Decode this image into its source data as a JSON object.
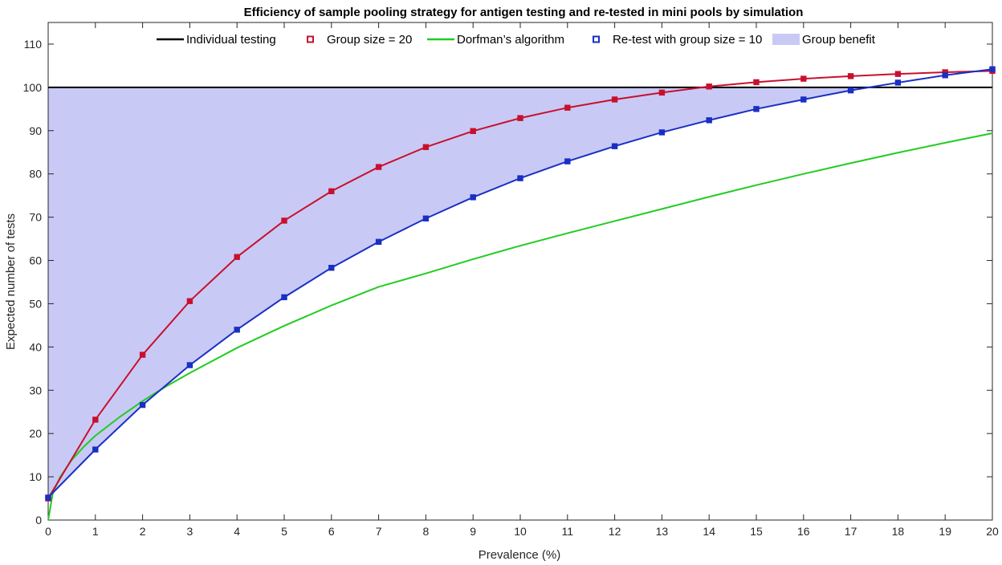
{
  "chart_data": {
    "type": "line",
    "title": "Efficiency of sample pooling strategy for antigen testing and re-tested in mini pools by simulation",
    "xlabel": "Prevalence (%)",
    "ylabel": "Expected number of tests",
    "xlim": [
      0,
      20
    ],
    "ylim": [
      0,
      115
    ],
    "xticks": [
      0,
      1,
      2,
      3,
      4,
      5,
      6,
      7,
      8,
      9,
      10,
      11,
      12,
      13,
      14,
      15,
      16,
      17,
      18,
      19,
      20
    ],
    "yticks": [
      0,
      10,
      20,
      30,
      40,
      50,
      60,
      70,
      80,
      90,
      100,
      110
    ],
    "grid": false,
    "legend_position": "top",
    "series": [
      {
        "name": "Individual testing",
        "color": "#000000",
        "marker": "none",
        "x": [
          0,
          20
        ],
        "y": [
          100,
          100
        ]
      },
      {
        "name": "Group size = 20",
        "color": "#c8102e",
        "marker": "square",
        "x": [
          0,
          1,
          2,
          3,
          4,
          5,
          6,
          7,
          8,
          9,
          10,
          11,
          12,
          13,
          14,
          15,
          16,
          17,
          18,
          19,
          20
        ],
        "y": [
          5,
          23.2,
          38.2,
          50.6,
          60.8,
          69.2,
          76.0,
          81.6,
          86.2,
          89.9,
          92.9,
          95.3,
          97.2,
          98.8,
          100.2,
          101.2,
          102.0,
          102.6,
          103.1,
          103.5,
          103.8
        ]
      },
      {
        "name": "Dorfman’s algorithm",
        "color": "#22cc22",
        "marker": "none",
        "x": [
          0,
          0.1,
          0.25,
          0.5,
          0.75,
          1,
          1.5,
          2,
          2.5,
          3,
          4,
          5,
          6,
          7,
          8,
          9,
          10,
          11,
          12,
          13,
          14,
          15,
          16,
          17,
          18,
          19,
          20
        ],
        "y": [
          0,
          6.3,
          9.9,
          13.9,
          16.9,
          19.5,
          23.7,
          27.5,
          30.9,
          34.0,
          39.8,
          44.9,
          49.6,
          53.9,
          57.0,
          60.3,
          63.4,
          66.3,
          69.1,
          71.9,
          74.7,
          77.4,
          80.0,
          82.5,
          84.9,
          87.2,
          89.4
        ]
      },
      {
        "name": "Re-test with group size = 10",
        "color": "#1a2fc4",
        "marker": "square",
        "x": [
          0,
          1,
          2,
          3,
          4,
          5,
          6,
          7,
          8,
          9,
          10,
          11,
          12,
          13,
          14,
          15,
          16,
          17,
          18,
          19,
          20
        ],
        "y": [
          5.2,
          16.3,
          26.6,
          35.8,
          44.0,
          51.5,
          58.3,
          64.3,
          69.7,
          74.6,
          79.0,
          82.9,
          86.4,
          89.6,
          92.4,
          95.0,
          97.2,
          99.3,
          101.1,
          102.8,
          104.2
        ]
      },
      {
        "name": "Group benefit",
        "color": "#c8caf5",
        "marker": "area",
        "description_of_fill": "area between Individual testing (100) and Re-test with group size = 10 curve"
      }
    ]
  }
}
